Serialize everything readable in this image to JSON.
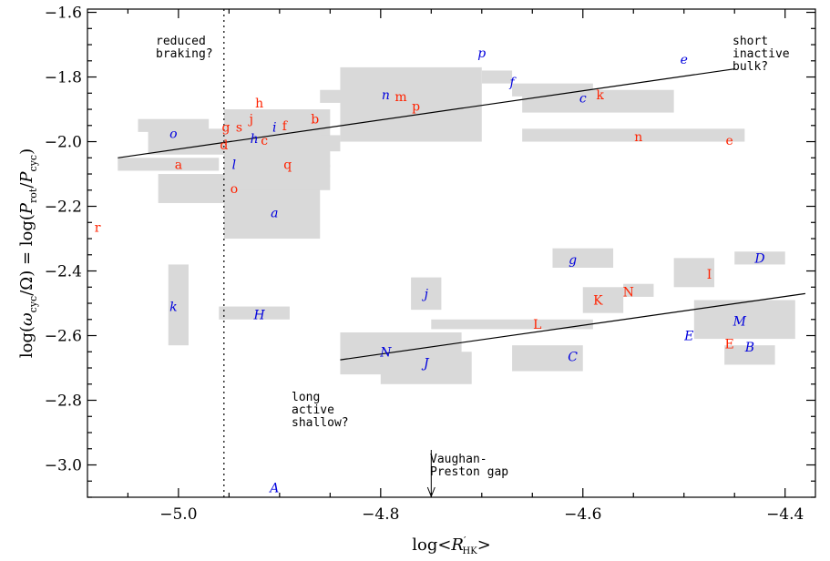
{
  "chart_data": {
    "type": "scatter",
    "xlabel": "log<R'HK>",
    "ylabel": "log(ωcyc/Ω) = log(Prot/Pcyc)",
    "xlim": [
      -5.09,
      -4.37
    ],
    "ylim": [
      -3.1,
      -1.59
    ],
    "x_ticks": [
      -5.0,
      -4.8,
      -4.6,
      -4.4
    ],
    "x_tick_labels": [
      "−5.0",
      "−4.8",
      "−4.6",
      "−4.4"
    ],
    "y_ticks": [
      -1.6,
      -1.8,
      -2.0,
      -2.2,
      -2.4,
      -2.6,
      -2.8,
      -3.0
    ],
    "y_tick_labels": [
      "−1.6",
      "−1.8",
      "−2.0",
      "−2.2",
      "−2.4",
      "−2.6",
      "−2.8",
      "−3.0"
    ],
    "colors": {
      "red": "#ff2200",
      "blue": "#0000dd",
      "box": "#d9d9d9",
      "axis": "#000000"
    },
    "boxes": [
      {
        "x": [
          -5.06,
          -4.96
        ],
        "y": [
          -2.09,
          -2.05
        ]
      },
      {
        "x": [
          -5.04,
          -4.97
        ],
        "y": [
          -1.97,
          -1.93
        ]
      },
      {
        "x": [
          -5.03,
          -4.95
        ],
        "y": [
          -2.04,
          -1.96
        ]
      },
      {
        "x": [
          -5.02,
          -4.95
        ],
        "y": [
          -2.19,
          -2.1
        ]
      },
      {
        "x": [
          -5.01,
          -4.99
        ],
        "y": [
          -2.63,
          -2.38
        ]
      },
      {
        "x": [
          -4.96,
          -4.89
        ],
        "y": [
          -2.55,
          -2.51
        ]
      },
      {
        "x": [
          -4.955,
          -4.86
        ],
        "y": [
          -2.3,
          -2.07
        ]
      },
      {
        "x": [
          -4.955,
          -4.85
        ],
        "y": [
          -2.15,
          -2.07
        ]
      },
      {
        "x": [
          -4.955,
          -4.85
        ],
        "y": [
          -2.08,
          -1.9
        ]
      },
      {
        "x": [
          -4.86,
          -4.78
        ],
        "y": [
          -1.88,
          -1.84
        ]
      },
      {
        "x": [
          -4.86,
          -4.84
        ],
        "y": [
          -2.03,
          -1.98
        ]
      },
      {
        "x": [
          -4.84,
          -4.7
        ],
        "y": [
          -2.0,
          -1.77
        ]
      },
      {
        "x": [
          -4.7,
          -4.67
        ],
        "y": [
          -1.82,
          -1.78
        ]
      },
      {
        "x": [
          -4.67,
          -4.59
        ],
        "y": [
          -1.86,
          -1.82
        ]
      },
      {
        "x": [
          -4.66,
          -4.51
        ],
        "y": [
          -1.91,
          -1.84
        ]
      },
      {
        "x": [
          -4.66,
          -4.44
        ],
        "y": [
          -2.0,
          -1.96
        ]
      },
      {
        "x": [
          -4.84,
          -4.72
        ],
        "y": [
          -2.72,
          -2.59
        ]
      },
      {
        "x": [
          -4.8,
          -4.71
        ],
        "y": [
          -2.75,
          -2.65
        ]
      },
      {
        "x": [
          -4.77,
          -4.74
        ],
        "y": [
          -2.52,
          -2.42
        ]
      },
      {
        "x": [
          -4.75,
          -4.59
        ],
        "y": [
          -2.58,
          -2.55
        ]
      },
      {
        "x": [
          -4.67,
          -4.6
        ],
        "y": [
          -2.71,
          -2.63
        ]
      },
      {
        "x": [
          -4.63,
          -4.57
        ],
        "y": [
          -2.39,
          -2.33
        ]
      },
      {
        "x": [
          -4.6,
          -4.56
        ],
        "y": [
          -2.53,
          -2.45
        ]
      },
      {
        "x": [
          -4.56,
          -4.53
        ],
        "y": [
          -2.48,
          -2.44
        ]
      },
      {
        "x": [
          -4.51,
          -4.47
        ],
        "y": [
          -2.45,
          -2.36
        ]
      },
      {
        "x": [
          -4.49,
          -4.39
        ],
        "y": [
          -2.61,
          -2.49
        ]
      },
      {
        "x": [
          -4.46,
          -4.41
        ],
        "y": [
          -2.69,
          -2.63
        ]
      },
      {
        "x": [
          -4.45,
          -4.4
        ],
        "y": [
          -2.38,
          -2.34
        ]
      }
    ],
    "series": [
      {
        "points": [
          {
            "label": "a",
            "x": -5.0,
            "y": -2.07
          },
          {
            "label": "b",
            "x": -4.865,
            "y": -1.93
          },
          {
            "label": "c",
            "x": -4.915,
            "y": -1.995
          },
          {
            "label": "d",
            "x": -4.955,
            "y": -2.01
          },
          {
            "label": "e",
            "x": -4.455,
            "y": -1.995
          },
          {
            "label": "f",
            "x": -4.895,
            "y": -1.95
          },
          {
            "label": "g",
            "x": -4.953,
            "y": -1.955
          },
          {
            "label": "s",
            "x": -4.94,
            "y": -1.955
          },
          {
            "label": "j",
            "x": -4.928,
            "y": -1.93
          },
          {
            "label": "h",
            "x": -4.92,
            "y": -1.88
          },
          {
            "label": "k",
            "x": -4.583,
            "y": -1.855
          },
          {
            "label": "m",
            "x": -4.78,
            "y": -1.86
          },
          {
            "label": "n",
            "x": -4.545,
            "y": -1.985
          },
          {
            "label": "o",
            "x": -4.945,
            "y": -2.145
          },
          {
            "label": "p",
            "x": -4.765,
            "y": -1.89
          },
          {
            "label": "q",
            "x": -4.892,
            "y": -2.07
          },
          {
            "label": "r",
            "x": -5.08,
            "y": -2.265
          },
          {
            "label": "I",
            "x": -4.475,
            "y": -2.41
          },
          {
            "label": "K",
            "x": -4.585,
            "y": -2.49
          },
          {
            "label": "N",
            "x": -4.555,
            "y": -2.465
          },
          {
            "label": "L",
            "x": -4.645,
            "y": -2.565
          },
          {
            "label": "E",
            "x": -4.455,
            "y": -2.625
          }
        ]
      },
      {
        "points": [
          {
            "label": "a",
            "x": -4.905,
            "y": -2.22
          },
          {
            "label": "c",
            "x": -4.6,
            "y": -1.865
          },
          {
            "label": "e",
            "x": -4.5,
            "y": -1.745
          },
          {
            "label": "f",
            "x": -4.67,
            "y": -1.815
          },
          {
            "label": "h",
            "x": -4.925,
            "y": -1.99
          },
          {
            "label": "i",
            "x": -4.905,
            "y": -1.955
          },
          {
            "label": "k",
            "x": -5.005,
            "y": -2.51
          },
          {
            "label": "l",
            "x": -4.945,
            "y": -2.07
          },
          {
            "label": "n",
            "x": -4.795,
            "y": -1.855
          },
          {
            "label": "o",
            "x": -5.005,
            "y": -1.975
          },
          {
            "label": "p",
            "x": -4.7,
            "y": -1.725
          },
          {
            "label": "g",
            "x": -4.61,
            "y": -2.365
          },
          {
            "label": "j",
            "x": -4.755,
            "y": -2.47
          },
          {
            "label": "H",
            "x": -4.92,
            "y": -2.535
          },
          {
            "label": "N",
            "x": -4.795,
            "y": -2.65
          },
          {
            "label": "J",
            "x": -4.755,
            "y": -2.685
          },
          {
            "label": "C",
            "x": -4.61,
            "y": -2.665
          },
          {
            "label": "D",
            "x": -4.425,
            "y": -2.36
          },
          {
            "label": "M",
            "x": -4.445,
            "y": -2.555
          },
          {
            "label": "E",
            "x": -4.495,
            "y": -2.6
          },
          {
            "label": "B",
            "x": -4.435,
            "y": -2.635
          },
          {
            "label": "A",
            "x": -4.905,
            "y": -3.07
          }
        ]
      }
    ],
    "fit_lines": [
      {
        "x": [
          -5.06,
          -4.45
        ],
        "y": [
          -2.05,
          -1.775
        ]
      },
      {
        "x": [
          -4.84,
          -4.38
        ],
        "y": [
          -2.675,
          -2.47
        ]
      }
    ],
    "vline": {
      "x": -4.955,
      "style": "dotted"
    },
    "annotations": {
      "reduced_braking": [
        "reduced",
        "braking?"
      ],
      "short_inactive_bulk": [
        "short",
        "inactive",
        "bulk?"
      ],
      "long_active_shallow": [
        "long",
        "active",
        "shallow?"
      ],
      "vaughan_preston_gap": [
        "Vaughan-",
        "Preston gap"
      ]
    },
    "vp_arrow_x": -4.75,
    "grid": false
  }
}
